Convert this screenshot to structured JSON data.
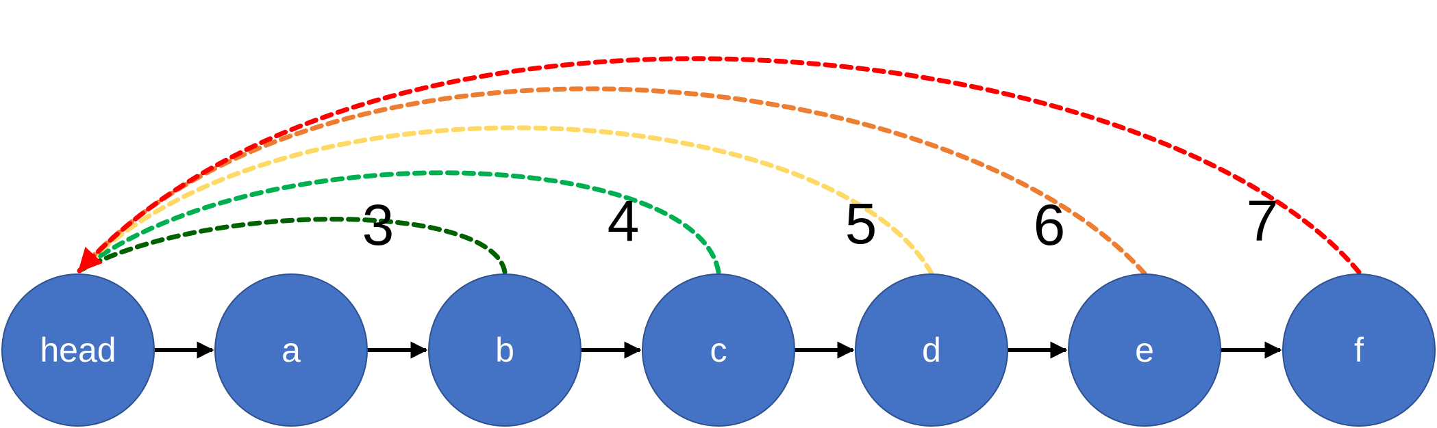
{
  "diagram": {
    "node_color": "#4472C4",
    "node_label_color": "#FFFFFF",
    "link_color": "#000000",
    "nodes": [
      {
        "id": "head",
        "label": "head"
      },
      {
        "id": "a",
        "label": "a"
      },
      {
        "id": "b",
        "label": "b"
      },
      {
        "id": "c",
        "label": "c"
      },
      {
        "id": "d",
        "label": "d"
      },
      {
        "id": "e",
        "label": "e"
      },
      {
        "id": "f",
        "label": "f"
      }
    ],
    "links": [
      {
        "from": "head",
        "to": "a"
      },
      {
        "from": "a",
        "to": "b"
      },
      {
        "from": "b",
        "to": "c"
      },
      {
        "from": "c",
        "to": "d"
      },
      {
        "from": "d",
        "to": "e"
      },
      {
        "from": "e",
        "to": "f"
      }
    ],
    "back_arcs": [
      {
        "from": "b",
        "to": "head",
        "label": "3",
        "color": "#006100",
        "style": "dashed"
      },
      {
        "from": "c",
        "to": "head",
        "label": "4",
        "color": "#00B050",
        "style": "dashed"
      },
      {
        "from": "d",
        "to": "head",
        "label": "5",
        "color": "#FFD966",
        "style": "dashed"
      },
      {
        "from": "e",
        "to": "head",
        "label": "6",
        "color": "#ED7D31",
        "style": "dashed"
      },
      {
        "from": "f",
        "to": "head",
        "label": "7",
        "color": "#FF0000",
        "style": "dashed"
      }
    ]
  }
}
